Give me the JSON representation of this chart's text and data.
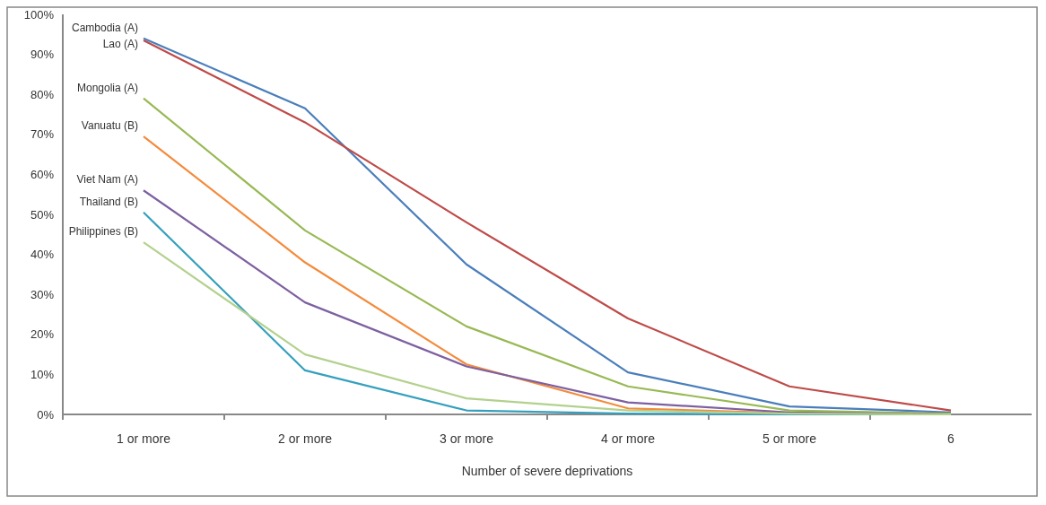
{
  "chart_data": {
    "type": "line",
    "xlabel": "Number of severe deprivations",
    "categories": [
      "1 or more",
      "2 or more",
      "3 or more",
      "4 or more",
      "5 or more",
      "6"
    ],
    "series": [
      {
        "name": "Cambodia  (A)",
        "color": "#4a7ebb",
        "values": [
          94,
          76.5,
          37.5,
          10.5,
          2,
          0.5
        ]
      },
      {
        "name": "Lao (A)",
        "color": "#be4b48",
        "values": [
          93.5,
          73,
          48,
          24,
          7,
          1
        ]
      },
      {
        "name": "Mongolia (A)",
        "color": "#98b954",
        "values": [
          79,
          46,
          22,
          7,
          1,
          0.2
        ]
      },
      {
        "name": "Vanuatu (B)",
        "color": "#f38b3c",
        "values": [
          69.5,
          38,
          12.5,
          1.5,
          0.3,
          0
        ]
      },
      {
        "name": "Viet Nam (A)",
        "color": "#7d60a0",
        "values": [
          56,
          28,
          12,
          3,
          0.5,
          0
        ]
      },
      {
        "name": "Thailand (B)",
        "color": "#35a0bd",
        "values": [
          50.5,
          11,
          1,
          0.2,
          0,
          0
        ]
      },
      {
        "name": "Philippines  (B)",
        "color": "#b3d18e",
        "values": [
          43,
          15,
          4,
          1,
          0.2,
          0
        ]
      }
    ],
    "ylim": [
      0,
      100
    ],
    "yticks": [
      {
        "value": 0,
        "label": "0%"
      },
      {
        "value": 10,
        "label": "10%"
      },
      {
        "value": 20,
        "label": "20%"
      },
      {
        "value": 30,
        "label": "30%"
      },
      {
        "value": 40,
        "label": "40%"
      },
      {
        "value": 50,
        "label": "50%"
      },
      {
        "value": 60,
        "label": "60%"
      },
      {
        "value": 70,
        "label": "70%"
      },
      {
        "value": 80,
        "label": "80%"
      },
      {
        "value": 90,
        "label": "90%"
      },
      {
        "value": 100,
        "label": "100%"
      }
    ],
    "grid": false,
    "marker": "none",
    "line_style": "solid"
  }
}
